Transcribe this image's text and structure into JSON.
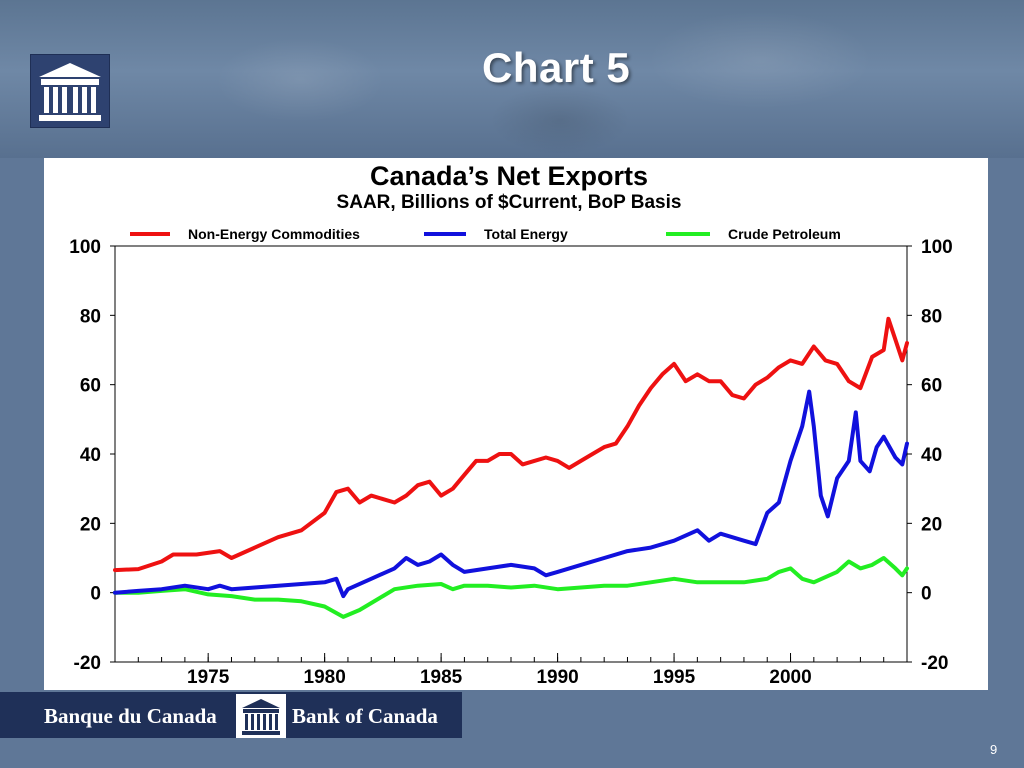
{
  "slide": {
    "title": "Chart 5",
    "page_number": "9"
  },
  "footer": {
    "name_fr": "Banque du Canada",
    "name_en": "Bank of Canada"
  },
  "colors": {
    "background": "#5f7797",
    "footer_bar": "#1f3058",
    "series_red": "#ee1111",
    "series_blue": "#1111dd",
    "series_green": "#22ee22"
  },
  "chart_data": {
    "type": "line",
    "title": "Canada’s Net Exports",
    "subtitle": "SAAR, Billions of $Current, BoP Basis",
    "xlim": [
      1971,
      2005
    ],
    "ylim": [
      -20,
      100
    ],
    "yticks": [
      -20,
      0,
      20,
      40,
      60,
      80,
      100
    ],
    "xticks": [
      1975,
      1980,
      1985,
      1990,
      1995,
      2000
    ],
    "grid": false,
    "legend_position": "top",
    "series": [
      {
        "name": "Non-Energy Commodities",
        "color": "#ee1111",
        "points": [
          [
            1971.0,
            6.5
          ],
          [
            1972.0,
            6.8
          ],
          [
            1973.0,
            9
          ],
          [
            1973.5,
            11
          ],
          [
            1974.5,
            11
          ],
          [
            1975.5,
            12
          ],
          [
            1976.0,
            10
          ],
          [
            1977.0,
            13
          ],
          [
            1978.0,
            16
          ],
          [
            1979.0,
            18
          ],
          [
            1980.0,
            23
          ],
          [
            1980.5,
            29
          ],
          [
            1981.0,
            30
          ],
          [
            1981.5,
            26
          ],
          [
            1982.0,
            28
          ],
          [
            1983.0,
            26
          ],
          [
            1983.5,
            28
          ],
          [
            1984.0,
            31
          ],
          [
            1984.5,
            32
          ],
          [
            1985.0,
            28
          ],
          [
            1985.5,
            30
          ],
          [
            1986.0,
            34
          ],
          [
            1986.5,
            38
          ],
          [
            1987.0,
            38
          ],
          [
            1987.5,
            40
          ],
          [
            1988.0,
            40
          ],
          [
            1988.5,
            37
          ],
          [
            1989.0,
            38
          ],
          [
            1989.5,
            39
          ],
          [
            1990.0,
            38
          ],
          [
            1990.5,
            36
          ],
          [
            1991.0,
            38
          ],
          [
            1991.5,
            40
          ],
          [
            1992.0,
            42
          ],
          [
            1992.5,
            43
          ],
          [
            1993.0,
            48
          ],
          [
            1993.5,
            54
          ],
          [
            1994.0,
            59
          ],
          [
            1994.5,
            63
          ],
          [
            1995.0,
            66
          ],
          [
            1995.5,
            61
          ],
          [
            1996.0,
            63
          ],
          [
            1996.5,
            61
          ],
          [
            1997.0,
            61
          ],
          [
            1997.5,
            57
          ],
          [
            1998.0,
            56
          ],
          [
            1998.5,
            60
          ],
          [
            1999.0,
            62
          ],
          [
            1999.5,
            65
          ],
          [
            2000.0,
            67
          ],
          [
            2000.5,
            66
          ],
          [
            2001.0,
            71
          ],
          [
            2001.5,
            67
          ],
          [
            2002.0,
            66
          ],
          [
            2002.5,
            61
          ],
          [
            2003.0,
            59
          ],
          [
            2003.5,
            68
          ],
          [
            2004.0,
            70
          ],
          [
            2004.2,
            79
          ],
          [
            2004.5,
            73
          ],
          [
            2004.8,
            67
          ],
          [
            2005.0,
            72
          ]
        ]
      },
      {
        "name": "Total Energy",
        "color": "#1111dd",
        "points": [
          [
            1971.0,
            0
          ],
          [
            1972.0,
            0.5
          ],
          [
            1973.0,
            1
          ],
          [
            1974.0,
            2
          ],
          [
            1975.0,
            1
          ],
          [
            1975.5,
            2
          ],
          [
            1976.0,
            1
          ],
          [
            1977.0,
            1.5
          ],
          [
            1978.0,
            2
          ],
          [
            1979.0,
            2.5
          ],
          [
            1980.0,
            3
          ],
          [
            1980.5,
            4
          ],
          [
            1980.8,
            -1
          ],
          [
            1981.0,
            1
          ],
          [
            1982.0,
            4
          ],
          [
            1983.0,
            7
          ],
          [
            1983.5,
            10
          ],
          [
            1984.0,
            8
          ],
          [
            1984.5,
            9
          ],
          [
            1985.0,
            11
          ],
          [
            1985.5,
            8
          ],
          [
            1986.0,
            6
          ],
          [
            1987.0,
            7
          ],
          [
            1988.0,
            8
          ],
          [
            1989.0,
            7
          ],
          [
            1989.5,
            5
          ],
          [
            1990.0,
            6
          ],
          [
            1991.0,
            8
          ],
          [
            1992.0,
            10
          ],
          [
            1993.0,
            12
          ],
          [
            1994.0,
            13
          ],
          [
            1995.0,
            15
          ],
          [
            1996.0,
            18
          ],
          [
            1996.5,
            15
          ],
          [
            1997.0,
            17
          ],
          [
            1998.0,
            15
          ],
          [
            1998.5,
            14
          ],
          [
            1999.0,
            23
          ],
          [
            1999.5,
            26
          ],
          [
            2000.0,
            38
          ],
          [
            2000.5,
            48
          ],
          [
            2000.8,
            58
          ],
          [
            2001.0,
            48
          ],
          [
            2001.3,
            28
          ],
          [
            2001.6,
            22
          ],
          [
            2002.0,
            33
          ],
          [
            2002.5,
            38
          ],
          [
            2002.8,
            52
          ],
          [
            2003.0,
            38
          ],
          [
            2003.4,
            35
          ],
          [
            2003.7,
            42
          ],
          [
            2004.0,
            45
          ],
          [
            2004.5,
            39
          ],
          [
            2004.8,
            37
          ],
          [
            2005.0,
            43
          ]
        ]
      },
      {
        "name": "Crude Petroleum",
        "color": "#22ee22",
        "points": [
          [
            1971.0,
            0
          ],
          [
            1972.0,
            0
          ],
          [
            1973.0,
            0.5
          ],
          [
            1974.0,
            1
          ],
          [
            1975.0,
            -0.5
          ],
          [
            1976.0,
            -1
          ],
          [
            1977.0,
            -2
          ],
          [
            1978.0,
            -2
          ],
          [
            1979.0,
            -2.5
          ],
          [
            1980.0,
            -4
          ],
          [
            1980.8,
            -7
          ],
          [
            1981.5,
            -5
          ],
          [
            1982.5,
            -1
          ],
          [
            1983.0,
            1
          ],
          [
            1984.0,
            2
          ],
          [
            1985.0,
            2.5
          ],
          [
            1985.5,
            1
          ],
          [
            1986.0,
            2
          ],
          [
            1987.0,
            2
          ],
          [
            1988.0,
            1.5
          ],
          [
            1989.0,
            2
          ],
          [
            1990.0,
            1
          ],
          [
            1991.0,
            1.5
          ],
          [
            1992.0,
            2
          ],
          [
            1993.0,
            2
          ],
          [
            1994.0,
            3
          ],
          [
            1995.0,
            4
          ],
          [
            1996.0,
            3
          ],
          [
            1997.0,
            3
          ],
          [
            1998.0,
            3
          ],
          [
            1999.0,
            4
          ],
          [
            1999.5,
            6
          ],
          [
            2000.0,
            7
          ],
          [
            2000.5,
            4
          ],
          [
            2001.0,
            3
          ],
          [
            2002.0,
            6
          ],
          [
            2002.5,
            9
          ],
          [
            2003.0,
            7
          ],
          [
            2003.5,
            8
          ],
          [
            2004.0,
            10
          ],
          [
            2004.5,
            7
          ],
          [
            2004.8,
            5
          ],
          [
            2005.0,
            7
          ]
        ]
      }
    ]
  }
}
